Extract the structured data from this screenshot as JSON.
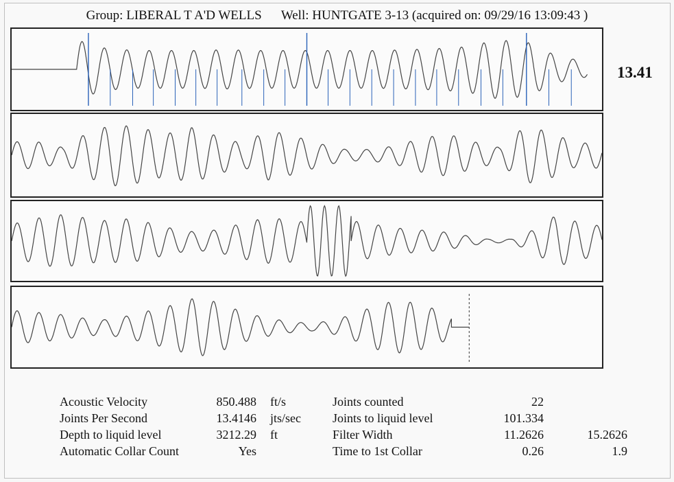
{
  "header": {
    "group_label": "Group:",
    "group": "LIBERAL T A'D WELLS",
    "well_label": "Well:",
    "well": "HUNTGATE 3-13",
    "acquired": "(acquired on: 09/29/16 13:09:43 )"
  },
  "joints_per_second_display": "13.41",
  "stats_left": [
    {
      "label": "Acoustic Velocity",
      "value": "850.488",
      "unit": "ft/s"
    },
    {
      "label": "Joints Per Second",
      "value": "13.4146",
      "unit": "jts/sec"
    },
    {
      "label": "Depth to liquid level",
      "value": "3212.29",
      "unit": "ft"
    },
    {
      "label": "Automatic Collar Count",
      "value": "Yes",
      "unit": ""
    }
  ],
  "stats_right": [
    {
      "label": "Joints counted",
      "value1": "22",
      "value2": ""
    },
    {
      "label": "Joints to liquid level",
      "value1": "101.334",
      "value2": ""
    },
    {
      "label": "Filter Width",
      "value1": "11.2626",
      "value2": "15.2626"
    },
    {
      "label": "Time to 1st Collar",
      "value1": "0.26",
      "value2": "1.9"
    }
  ],
  "chart_data": {
    "type": "line",
    "panels": [
      {
        "name": "panel-1",
        "segments": [
          {
            "from": 0.0,
            "to": 0.11,
            "period": 0.04,
            "amp": [
              0,
              0
            ],
            "flat": true
          },
          {
            "from": 0.11,
            "to": 0.975,
            "period": 0.0378,
            "amp": [
              0.78,
              0.55,
              0.5,
              0.5,
              0.5,
              0.52,
              0.5,
              0.5,
              0.5,
              0.5,
              0.5,
              0.52,
              0.55,
              0.6,
              0.78,
              0.72,
              0.35,
              0.2
            ]
          }
        ],
        "collars": [
          0.13,
          0.167,
          0.205,
          0.24,
          0.277,
          0.312,
          0.348,
          0.39,
          0.427,
          0.463,
          0.5,
          0.536,
          0.573,
          0.61,
          0.647,
          0.684,
          0.72,
          0.757,
          0.795,
          0.832,
          0.872,
          0.91,
          0.948
        ],
        "major_collars": [
          0.13,
          0.5,
          0.872
        ]
      },
      {
        "name": "panel-2",
        "segments": [
          {
            "from": 0.0,
            "to": 1.0,
            "period": 0.037,
            "amp": [
              0.35,
              0.35,
              0.2,
              0.6,
              0.8,
              0.72,
              0.55,
              0.72,
              0.5,
              0.3,
              0.65,
              0.5,
              0.3,
              0.15,
              0.15,
              0.25,
              0.45,
              0.55,
              0.35,
              0.2,
              0.75,
              0.6,
              0.3,
              0.35
            ]
          }
        ]
      },
      {
        "name": "panel-3",
        "segments": [
          {
            "from": 0.0,
            "to": 0.5,
            "period": 0.037,
            "amp": [
              0.45,
              0.6,
              0.72,
              0.65,
              0.55,
              0.6,
              0.5,
              0.35,
              0.25,
              0.3,
              0.45,
              0.6,
              0.6,
              0.5
            ]
          },
          {
            "from": 0.5,
            "to": 0.575,
            "period": 0.024,
            "amp": [
              0.95,
              0.95,
              0.95,
              0.95
            ]
          },
          {
            "from": 0.575,
            "to": 1.0,
            "period": 0.037,
            "amp": [
              0.55,
              0.45,
              0.35,
              0.3,
              0.25,
              0.15,
              0.05,
              0.05,
              0.3,
              0.7,
              0.5,
              0.4
            ]
          }
        ]
      },
      {
        "name": "panel-4",
        "segments": [
          {
            "from": 0.0,
            "to": 0.745,
            "period": 0.037,
            "amp": [
              0.45,
              0.4,
              0.35,
              0.25,
              0.2,
              0.3,
              0.45,
              0.6,
              0.8,
              0.65,
              0.4,
              0.25,
              0.15,
              0.1,
              0.2,
              0.4,
              0.65,
              0.7,
              0.55,
              0.3
            ]
          },
          {
            "from": 0.745,
            "to": 0.775,
            "period": 0.04,
            "amp": [
              0,
              0
            ],
            "flat": true
          }
        ],
        "cursor": 0.775
      }
    ]
  }
}
